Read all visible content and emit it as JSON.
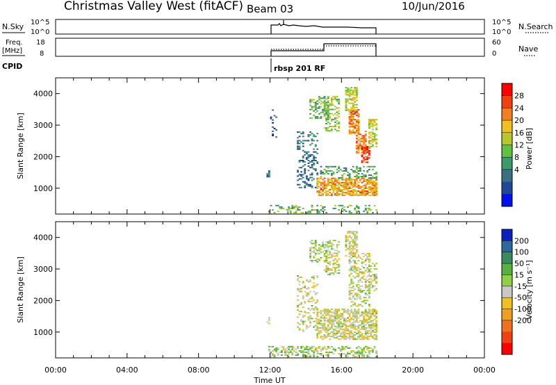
{
  "header": {
    "station": "Christmas Valley West (fitACF)",
    "beam": "Beam 03",
    "date": "10/Jun/2016"
  },
  "panels": {
    "nsky": {
      "label": "N.Sky",
      "left_ticks": [
        "10^5",
        "10^0"
      ],
      "right_ticks": [
        "10^5",
        "10^0"
      ],
      "right_label": "N.Search"
    },
    "freq": {
      "label_line1": "Freq.",
      "label_line2": "[MHz]",
      "left_ticks": [
        "18",
        "8"
      ],
      "right_ticks": [
        "60",
        "0"
      ],
      "right_label": "Nave"
    },
    "cpid": {
      "label": "CPID",
      "program": "rbsp 201 RF"
    }
  },
  "x_axis": {
    "label": "Time UT",
    "ticks": [
      "00:00",
      "04:00",
      "08:00",
      "12:00",
      "16:00",
      "20:00",
      "00:00"
    ]
  },
  "colorbars": {
    "power": {
      "label": "Power [dB]",
      "ticks": [
        "28",
        "24",
        "20",
        "16",
        "12",
        "8",
        "4"
      ],
      "colors": [
        "#ff0000",
        "#f04010",
        "#f08020",
        "#f0c020",
        "#b8c828",
        "#60c040",
        "#3a9a6a",
        "#3a7080",
        "#204898",
        "#0010f0"
      ]
    },
    "velocity": {
      "label": "Velocity [m s⁻¹]",
      "ticks": [
        "200",
        "100",
        "50",
        "15",
        "-15",
        "-50",
        "-100",
        "-200"
      ],
      "colors": [
        "#0a20c0",
        "#2a6aa0",
        "#3a8a60",
        "#58b040",
        "#90d048",
        "#c8c8c8",
        "#f0c020",
        "#f0a020",
        "#f07020",
        "#f04010",
        "#ff0000"
      ]
    }
  },
  "chart_data": [
    {
      "type": "heatmap",
      "title": "Power",
      "ylabel": "Slant Range [km]",
      "xlabel": "",
      "x_units": "hours UT",
      "xlim": [
        0,
        24
      ],
      "ylim": [
        180,
        4500
      ],
      "y_ticks": [
        1000,
        2000,
        3000,
        4000
      ],
      "scale_label": "Power [dB]",
      "zlim": [
        0,
        32
      ],
      "regions": [
        {
          "t0": 11.9,
          "t1": 18.0,
          "r0": 200,
          "r1": 450,
          "value": 14,
          "density": 0.3
        },
        {
          "t0": 11.8,
          "t1": 12.0,
          "r0": 1250,
          "r1": 1550,
          "value": 8,
          "density": 0.6
        },
        {
          "t0": 12.0,
          "t1": 12.3,
          "r0": 2600,
          "r1": 3500,
          "value": 6,
          "density": 0.2
        },
        {
          "t0": 13.5,
          "t1": 14.6,
          "r0": 1000,
          "r1": 2800,
          "value": 8,
          "density": 0.35
        },
        {
          "t0": 14.2,
          "t1": 15.2,
          "r0": 3200,
          "r1": 3900,
          "value": 14,
          "density": 0.45
        },
        {
          "t0": 15.0,
          "t1": 15.8,
          "r0": 2800,
          "r1": 3900,
          "value": 16,
          "density": 0.5
        },
        {
          "t0": 14.6,
          "t1": 18.0,
          "r0": 750,
          "r1": 1300,
          "value": 22,
          "density": 0.7
        },
        {
          "t0": 14.8,
          "t1": 18.0,
          "r0": 1300,
          "r1": 1700,
          "value": 12,
          "density": 0.35
        },
        {
          "t0": 16.2,
          "t1": 16.9,
          "r0": 3400,
          "r1": 4200,
          "value": 18,
          "density": 0.65
        },
        {
          "t0": 16.4,
          "t1": 17.0,
          "r0": 2700,
          "r1": 3500,
          "value": 24,
          "density": 0.7
        },
        {
          "t0": 16.8,
          "t1": 17.4,
          "r0": 2100,
          "r1": 2800,
          "value": 24,
          "density": 0.7
        },
        {
          "t0": 17.1,
          "t1": 17.6,
          "r0": 1800,
          "r1": 2300,
          "value": 28,
          "density": 0.7
        },
        {
          "t0": 17.5,
          "t1": 18.0,
          "r0": 2300,
          "r1": 3200,
          "value": 18,
          "density": 0.55
        }
      ]
    },
    {
      "type": "heatmap",
      "title": "Velocity",
      "ylabel": "Slant Range [km]",
      "xlabel": "Time UT",
      "x_units": "hours UT",
      "xlim": [
        0,
        24
      ],
      "ylim": [
        180,
        4500
      ],
      "y_ticks": [
        1000,
        2000,
        3000,
        4000
      ],
      "scale_label": "Velocity [m s⁻¹]",
      "zlim": [
        -250,
        250
      ],
      "regions": [
        {
          "t0": 11.9,
          "t1": 18.0,
          "r0": 200,
          "r1": 550,
          "value": 30,
          "density": 0.45
        },
        {
          "t0": 11.8,
          "t1": 12.0,
          "r0": 1250,
          "r1": 1450,
          "value": -40,
          "density": 0.6
        },
        {
          "t0": 13.5,
          "t1": 14.6,
          "r0": 1000,
          "r1": 2800,
          "value": 5,
          "density": 0.3
        },
        {
          "t0": 14.2,
          "t1": 15.2,
          "r0": 3200,
          "r1": 3900,
          "value": 30,
          "density": 0.45
        },
        {
          "t0": 15.0,
          "t1": 15.8,
          "r0": 2800,
          "r1": 3900,
          "value": 5,
          "density": 0.4
        },
        {
          "t0": 14.6,
          "t1": 18.0,
          "r0": 750,
          "r1": 1700,
          "value": 0,
          "density": 0.65
        },
        {
          "t0": 16.2,
          "t1": 16.9,
          "r0": 3400,
          "r1": 4200,
          "value": 0,
          "density": 0.6
        },
        {
          "t0": 16.4,
          "t1": 17.6,
          "r0": 1800,
          "r1": 3500,
          "value": 3,
          "density": 0.45
        },
        {
          "t0": 17.5,
          "t1": 18.0,
          "r0": 2300,
          "r1": 3200,
          "value": 20,
          "density": 0.5
        }
      ]
    }
  ]
}
